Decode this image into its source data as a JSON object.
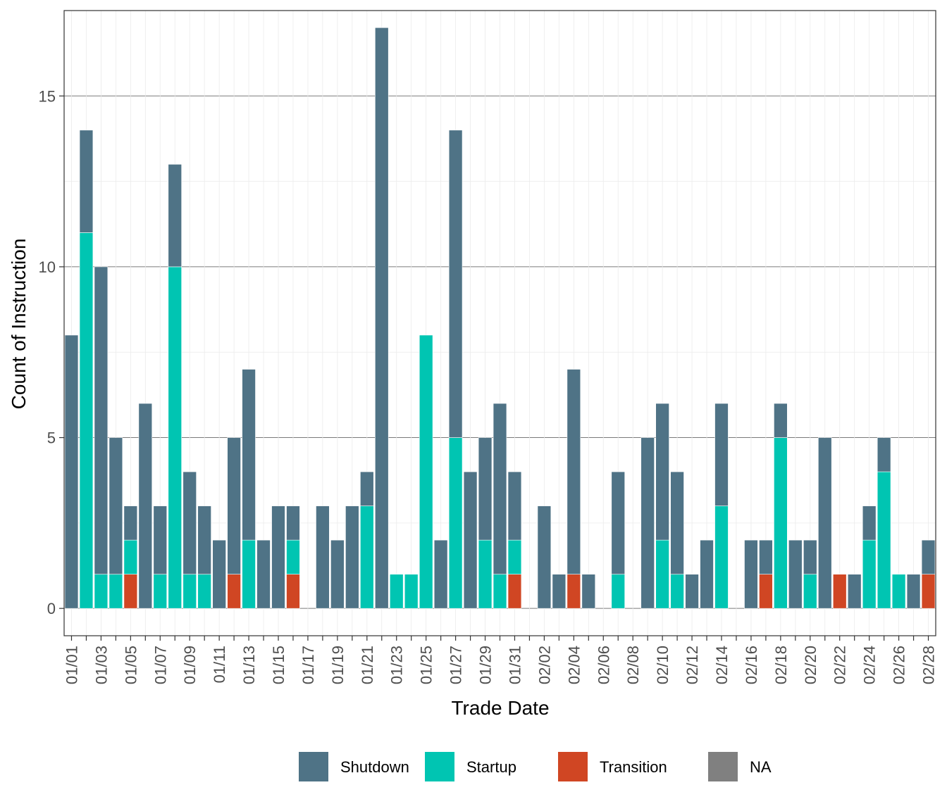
{
  "chart_data": {
    "type": "bar",
    "stacked": true,
    "xlabel": "Trade Date",
    "ylabel": "Count of Instruction",
    "ylim": [
      -0.8,
      17.5
    ],
    "yticks": [
      0,
      5,
      10,
      15
    ],
    "grid": true,
    "legend_position": "bottom",
    "categories": [
      "01/01",
      "01/02",
      "01/03",
      "01/04",
      "01/05",
      "01/06",
      "01/07",
      "01/08",
      "01/09",
      "01/10",
      "01/11",
      "01/12",
      "01/13",
      "01/14",
      "01/15",
      "01/16",
      "01/17",
      "01/18",
      "01/19",
      "01/20",
      "01/21",
      "01/22",
      "01/23",
      "01/24",
      "01/25",
      "01/26",
      "01/27",
      "01/28",
      "01/29",
      "01/30",
      "01/31",
      "02/01",
      "02/02",
      "02/03",
      "02/04",
      "02/05",
      "02/06",
      "02/07",
      "02/08",
      "02/09",
      "02/10",
      "02/11",
      "02/12",
      "02/13",
      "02/14",
      "02/15",
      "02/16",
      "02/17",
      "02/18",
      "02/19",
      "02/20",
      "02/21",
      "02/22",
      "02/23",
      "02/24",
      "02/25",
      "02/26",
      "02/27",
      "02/28"
    ],
    "tick_labels": [
      "01/01",
      "01/03",
      "01/05",
      "01/07",
      "01/09",
      "01/11",
      "01/13",
      "01/15",
      "01/17",
      "01/19",
      "01/21",
      "01/23",
      "01/25",
      "01/27",
      "01/29",
      "01/31",
      "02/02",
      "02/04",
      "02/06",
      "02/08",
      "02/10",
      "02/12",
      "02/14",
      "02/16",
      "02/18",
      "02/20",
      "02/22",
      "02/24",
      "02/26",
      "02/28"
    ],
    "series": [
      {
        "name": "Transition",
        "color": "#D04623",
        "values": [
          0,
          0,
          0,
          0,
          1,
          0,
          0,
          0,
          0,
          0,
          0,
          1,
          0,
          0,
          0,
          1,
          0,
          0,
          0,
          0,
          0,
          0,
          0,
          0,
          0,
          0,
          0,
          0,
          0,
          0,
          1,
          0,
          0,
          0,
          1,
          0,
          0,
          0,
          0,
          0,
          0,
          0,
          0,
          0,
          0,
          0,
          0,
          1,
          0,
          0,
          0,
          0,
          1,
          0,
          0,
          0,
          0,
          0,
          1
        ]
      },
      {
        "name": "Startup",
        "color": "#00C5B2",
        "values": [
          0,
          11,
          1,
          1,
          1,
          0,
          1,
          10,
          1,
          1,
          0,
          0,
          2,
          0,
          0,
          1,
          0,
          0,
          0,
          0,
          3,
          0,
          1,
          1,
          8,
          0,
          5,
          0,
          2,
          1,
          1,
          0,
          0,
          0,
          0,
          0,
          0,
          1,
          0,
          0,
          2,
          1,
          0,
          0,
          3,
          0,
          0,
          0,
          5,
          0,
          1,
          0,
          0,
          0,
          2,
          4,
          1,
          0,
          0
        ]
      },
      {
        "name": "Shutdown",
        "color": "#4F7386",
        "values": [
          8,
          3,
          9,
          4,
          1,
          6,
          2,
          3,
          3,
          2,
          2,
          4,
          5,
          2,
          3,
          1,
          0,
          3,
          2,
          3,
          1,
          17,
          0,
          0,
          0,
          2,
          9,
          4,
          3,
          5,
          2,
          0,
          3,
          1,
          6,
          1,
          0,
          3,
          0,
          5,
          4,
          3,
          1,
          2,
          3,
          0,
          2,
          1,
          1,
          2,
          1,
          5,
          0,
          1,
          1,
          1,
          0,
          1,
          1
        ]
      },
      {
        "name": "NA",
        "color": "#808080",
        "values": [
          0,
          0,
          0,
          0,
          0,
          0,
          0,
          0,
          0,
          0,
          0,
          0,
          0,
          0,
          0,
          0,
          0,
          0,
          0,
          0,
          0,
          0,
          0,
          0,
          0,
          0,
          0,
          0,
          0,
          0,
          0,
          0,
          0,
          0,
          0,
          0,
          0,
          0,
          0,
          0,
          0,
          0,
          0,
          0,
          0,
          0,
          0,
          0,
          0,
          0,
          0,
          0,
          0,
          0,
          0,
          0,
          0,
          0,
          0
        ]
      }
    ],
    "legend": [
      {
        "name": "Shutdown",
        "color": "#4F7386"
      },
      {
        "name": "Startup",
        "color": "#00C5B2"
      },
      {
        "name": "Transition",
        "color": "#D04623"
      },
      {
        "name": "NA",
        "color": "#808080"
      }
    ]
  }
}
